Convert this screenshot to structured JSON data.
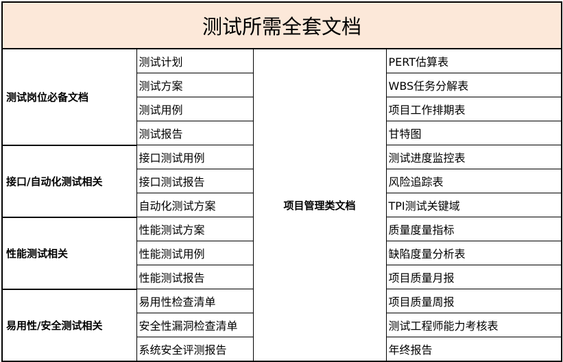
{
  "title": "测试所需全套文档",
  "groups": [
    {
      "label": "测试岗位必备文档",
      "items": [
        "测试计划",
        "测试方案",
        "测试用例",
        "测试报告"
      ]
    },
    {
      "label": "接口/自动化测试相关",
      "items": [
        "接口测试用例",
        "接口测试报告",
        "自动化测试方案"
      ]
    },
    {
      "label": "性能测试相关",
      "items": [
        "性能测试方案",
        "性能测试用例",
        "性能测试报告"
      ]
    },
    {
      "label": "易用性/安全测试相关",
      "items": [
        "易用性检查清单",
        "安全性漏洞检查清单",
        "系统安全评测报告"
      ]
    }
  ],
  "project": {
    "label": "项目管理类文档",
    "items": [
      "PERT估算表",
      "WBS任务分解表",
      "项目工作排期表",
      "甘特图",
      "测试进度监控表",
      "风险追踪表",
      "TPI测试关键域",
      "质量度量指标",
      "缺陷度量分析表",
      "项目质量月报",
      "项目质量周报",
      "测试工程师能力考核表",
      "年终报告"
    ]
  }
}
